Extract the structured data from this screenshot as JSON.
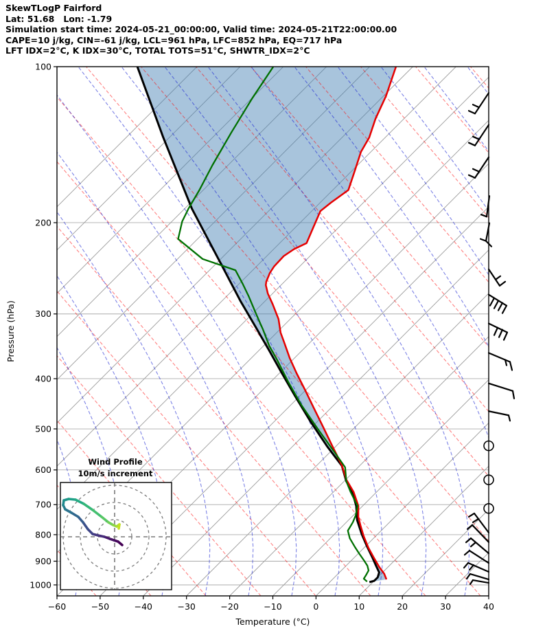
{
  "header": {
    "lines": [
      "SkewTLogP Fairford",
      "Lat: 51.68   Lon: -1.79",
      "Simulation start time: 2024-05-21_00:00:00, Valid time: 2024-05-21T22:00:00.00",
      "CAPE=10 j/kg, CIN=-61 j/kg, LCL=961 hPa, LFC=852 hPa, EQ=717 hPa",
      "LFT IDX=2°C, K IDX=30°C, TOTAL TOTS=51°C, SHWTR_IDX=2°C"
    ]
  },
  "axes": {
    "x_label": "Temperature (°C)",
    "y_label": "Pressure (hPa)",
    "x_ticks": [
      -60,
      -50,
      -40,
      -30,
      -20,
      -10,
      0,
      10,
      20,
      30,
      40
    ],
    "y_ticks": [
      100,
      200,
      300,
      400,
      500,
      600,
      700,
      800,
      900,
      1000
    ]
  },
  "colors": {
    "temperature_line": "#e60000",
    "dewpoint_line": "#007000",
    "parcel_line": "#000000",
    "shading_fill": "rgba(70,130,180,0.47)",
    "isotherm": "#9a9a9a",
    "grid_horizontal": "#ababab",
    "dry_adiabat": "rgba(255,0,0,0.5)",
    "moist_adiabat": "rgba(30,40,210,0.58)",
    "barb": "#000000",
    "hodo_ring": "#7a7a7a"
  },
  "chart_data": {
    "type": "skewt-logp",
    "title": "SkewTLogP Fairford",
    "pressure_range": [
      100,
      1050
    ],
    "temp_range": [
      -60,
      40
    ],
    "skew_deg": 45,
    "grid": true,
    "indices": {
      "CAPE_j_kg": 10,
      "CIN_j_kg": -61,
      "LCL_hPa": 961,
      "LFC_hPa": 852,
      "EQ_hPa": 717,
      "LFT_IDX_C": 2,
      "K_IDX_C": 30,
      "TOTAL_TOTS_C": 51,
      "SHWTR_IDX_C": 2
    },
    "temperature_profile": [
      [
        100,
        -103.9
      ],
      [
        114,
        -99.4
      ],
      [
        126,
        -96.6
      ],
      [
        137,
        -93.7
      ],
      [
        146,
        -92.3
      ],
      [
        160,
        -89.1
      ],
      [
        173,
        -86.4
      ],
      [
        183,
        -87.5
      ],
      [
        190,
        -88.0
      ],
      [
        204,
        -85.9
      ],
      [
        219,
        -83.8
      ],
      [
        225,
        -85.3
      ],
      [
        232,
        -86.1
      ],
      [
        243,
        -85.9
      ],
      [
        250,
        -85.4
      ],
      [
        260,
        -84.2
      ],
      [
        264,
        -83.5
      ],
      [
        274,
        -81.1
      ],
      [
        287,
        -77.6
      ],
      [
        307,
        -72.7
      ],
      [
        326,
        -69.1
      ],
      [
        341,
        -65.9
      ],
      [
        365,
        -61.1
      ],
      [
        391,
        -55.9
      ],
      [
        421,
        -50.1
      ],
      [
        455,
        -44.1
      ],
      [
        494,
        -37.7
      ],
      [
        536,
        -31.4
      ],
      [
        588,
        -24.2
      ],
      [
        627,
        -19.8
      ],
      [
        662,
        -15.3
      ],
      [
        704,
        -11.0
      ],
      [
        739,
        -8.5
      ],
      [
        769,
        -5.9
      ],
      [
        805,
        -2.8
      ],
      [
        848,
        1.0
      ],
      [
        890,
        4.9
      ],
      [
        924,
        8.0
      ],
      [
        952,
        10.7
      ],
      [
        976,
        12.5
      ]
    ],
    "dewpoint_profile": [
      [
        100,
        -132.3
      ],
      [
        115,
        -129.9
      ],
      [
        134,
        -126.8
      ],
      [
        155,
        -123.6
      ],
      [
        173,
        -120.9
      ],
      [
        188,
        -119.1
      ],
      [
        199,
        -117.6
      ],
      [
        215,
        -114.5
      ],
      [
        235,
        -104.2
      ],
      [
        247,
        -94.0
      ],
      [
        262,
        -89.3
      ],
      [
        277,
        -85.0
      ],
      [
        300,
        -79.1
      ],
      [
        322,
        -73.8
      ],
      [
        346,
        -68.6
      ],
      [
        367,
        -63.8
      ],
      [
        407,
        -55.7
      ],
      [
        451,
        -47.3
      ],
      [
        499,
        -38.4
      ],
      [
        553,
        -29.2
      ],
      [
        593,
        -23.0
      ],
      [
        631,
        -19.5
      ],
      [
        662,
        -16.0
      ],
      [
        704,
        -11.2
      ],
      [
        735,
        -9.4
      ],
      [
        757,
        -8.5
      ],
      [
        786,
        -7.7
      ],
      [
        813,
        -5.5
      ],
      [
        843,
        -2.5
      ],
      [
        869,
        0.1
      ],
      [
        896,
        2.8
      ],
      [
        918,
        4.9
      ],
      [
        938,
        6.3
      ],
      [
        958,
        6.8
      ],
      [
        973,
        7.1
      ],
      [
        985,
        8.5
      ]
    ],
    "parcel_profile": [
      [
        100,
        -163.8
      ],
      [
        137,
        -141.4
      ],
      [
        188,
        -118.3
      ],
      [
        251,
        -95.3
      ],
      [
        283,
        -85.8
      ],
      [
        319,
        -75.9
      ],
      [
        353,
        -67.6
      ],
      [
        390,
        -59.5
      ],
      [
        433,
        -50.9
      ],
      [
        484,
        -41.6
      ],
      [
        541,
        -31.9
      ],
      [
        589,
        -24.1
      ],
      [
        631,
        -19.5
      ],
      [
        662,
        -15.6
      ],
      [
        704,
        -11.5
      ],
      [
        750,
        -8.0
      ],
      [
        798,
        -3.7
      ],
      [
        843,
        0.4
      ],
      [
        888,
        4.4
      ],
      [
        918,
        6.9
      ],
      [
        946,
        9.2
      ],
      [
        967,
        10.0
      ],
      [
        982,
        10.0
      ],
      [
        988,
        9.2
      ]
    ],
    "shading": "area between parcel_profile and temperature_profile",
    "wind_barbs": [
      {
        "p": 118,
        "segs": [
          [
            [
              0,
              -16
            ],
            [
              -20,
              14
            ]
          ],
          [
            [
              -20,
              14
            ],
            [
              -29,
              10
            ]
          ],
          [
            [
              -14,
              5
            ],
            [
              -23,
              1
            ]
          ]
        ]
      },
      {
        "p": 136,
        "segs": [
          [
            [
              0,
              -16
            ],
            [
              -20,
              14
            ]
          ],
          [
            [
              -20,
              14
            ],
            [
              -29,
              10
            ]
          ],
          [
            [
              -14,
              5
            ],
            [
              -23,
              1
            ]
          ]
        ]
      },
      {
        "p": 157,
        "segs": [
          [
            [
              0,
              -16
            ],
            [
              -20,
              14
            ]
          ],
          [
            [
              -20,
              14
            ],
            [
              -29,
              10
            ]
          ],
          [
            [
              -14,
              5
            ],
            [
              -23,
              1
            ]
          ]
        ]
      },
      {
        "p": 186,
        "segs": [
          [
            [
              1,
              -15
            ],
            [
              -3,
              15
            ]
          ],
          [
            [
              -3,
              15
            ],
            [
              -11,
              12
            ]
          ]
        ]
      },
      {
        "p": 213,
        "segs": [
          [
            [
              1,
              -20
            ],
            [
              -4,
              6
            ]
          ],
          [
            [
              -4,
              6
            ],
            [
              4,
              14
            ]
          ],
          [
            [
              -4,
              6
            ],
            [
              -12,
              3
            ]
          ]
        ]
      },
      {
        "p": 249,
        "segs": [
          [
            [
              0,
              -4
            ],
            [
              16,
              20
            ]
          ],
          [
            [
              16,
              20
            ],
            [
              24,
              14
            ]
          ],
          [
            [
              10,
              11
            ],
            [
              17,
              6
            ]
          ]
        ]
      },
      {
        "p": 277,
        "segs": [
          [
            [
              0,
              -2
            ],
            [
              26,
              14
            ]
          ],
          [
            [
              26,
              14
            ],
            [
              20,
              25
            ]
          ],
          [
            [
              20,
              10
            ],
            [
              14,
              21
            ]
          ],
          [
            [
              14,
              7
            ],
            [
              8,
              18
            ]
          ],
          [
            [
              8,
              3
            ],
            [
              2,
              14
            ]
          ]
        ]
      },
      {
        "p": 313,
        "segs": [
          [
            [
              0,
              0
            ],
            [
              27,
              13
            ]
          ],
          [
            [
              27,
              13
            ],
            [
              22,
              24
            ]
          ],
          [
            [
              20,
              9
            ],
            [
              15,
              20
            ]
          ],
          [
            [
              13,
              6
            ],
            [
              8,
              17
            ]
          ]
        ]
      },
      {
        "p": 359,
        "segs": [
          [
            [
              0,
              -2
            ],
            [
              31,
              11
            ]
          ],
          [
            [
              31,
              11
            ],
            [
              34,
              23
            ]
          ],
          [
            [
              24,
              8
            ],
            [
              26,
              16
            ]
          ]
        ]
      },
      {
        "p": 411,
        "segs": [
          [
            [
              0,
              -2
            ],
            [
              35,
              9
            ]
          ],
          [
            [
              35,
              9
            ],
            [
              37,
              20
            ]
          ]
        ]
      },
      {
        "p": 465,
        "segs": [
          [
            [
              0,
              -2
            ],
            [
              29,
              4
            ]
          ],
          [
            [
              29,
              4
            ],
            [
              31,
              12
            ]
          ]
        ]
      },
      {
        "p": 539,
        "calm": true
      },
      {
        "p": 627,
        "calm": true
      },
      {
        "p": 712,
        "calm": true
      },
      {
        "p": 788,
        "segs": [
          [
            [
              0,
              2
            ],
            [
              -21,
              -26
            ]
          ],
          [
            [
              -21,
              -26
            ],
            [
              -29,
              -21
            ]
          ],
          [
            [
              -15,
              -18
            ],
            [
              -23,
              -13
            ]
          ]
        ]
      },
      {
        "p": 822,
        "segs": [
          [
            [
              0,
              2
            ],
            [
              -24,
              -23
            ]
          ],
          [
            [
              -24,
              -23
            ],
            [
              -31,
              -17
            ]
          ]
        ]
      },
      {
        "p": 864,
        "segs": [
          [
            [
              0,
              2
            ],
            [
              -26,
              -20
            ]
          ],
          [
            [
              -26,
              -20
            ],
            [
              -33,
              -14
            ]
          ],
          [
            [
              -19,
              -14
            ],
            [
              -26,
              -8
            ]
          ]
        ]
      },
      {
        "p": 902,
        "segs": [
          [
            [
              0,
              2
            ],
            [
              -28,
              -16
            ]
          ],
          [
            [
              -28,
              -16
            ],
            [
              -35,
              -10
            ]
          ]
        ]
      },
      {
        "p": 938,
        "segs": [
          [
            [
              0,
              2
            ],
            [
              -30,
              -11
            ]
          ],
          [
            [
              -30,
              -11
            ],
            [
              -36,
              -4
            ]
          ],
          [
            [
              -22,
              -8
            ],
            [
              -28,
              -1
            ]
          ]
        ]
      },
      {
        "p": 973,
        "segs": [
          [
            [
              0,
              1
            ],
            [
              -27,
              -7
            ]
          ],
          [
            [
              -32,
              0
            ],
            [
              -27,
              -7
            ]
          ]
        ]
      },
      {
        "p": 991,
        "segs": [
          [
            [
              0,
              0
            ],
            [
              -23,
              -4
            ]
          ],
          [
            [
              -27,
              2
            ],
            [
              -23,
              -4
            ]
          ]
        ]
      }
    ],
    "hodograph": {
      "title": "Wind Profile",
      "subtitle": "10m/s increment",
      "ring_increment_ms": 10,
      "rings_ms": [
        10,
        20,
        30
      ],
      "trace_uv_ms": [
        [
          4.4,
          -4.8
        ],
        [
          2.0,
          -2.8
        ],
        [
          -0.4,
          -2.0
        ],
        [
          -2.8,
          -1.2
        ],
        [
          -6.0,
          0.0
        ],
        [
          -9.6,
          0.8
        ],
        [
          -12.8,
          1.6
        ],
        [
          -15.6,
          4.4
        ],
        [
          -18.4,
          8.4
        ],
        [
          -21.2,
          11.6
        ],
        [
          -25.2,
          14.0
        ],
        [
          -28.8,
          16.0
        ],
        [
          -30.0,
          18.4
        ],
        [
          -29.6,
          21.2
        ],
        [
          -26.8,
          22.0
        ],
        [
          -22.8,
          21.6
        ],
        [
          -18.0,
          19.2
        ],
        [
          -12.8,
          15.6
        ],
        [
          -7.6,
          11.6
        ],
        [
          -3.6,
          8.4
        ],
        [
          -0.8,
          6.8
        ],
        [
          1.2,
          6.0
        ],
        [
          2.8,
          7.2
        ],
        [
          2.4,
          4.8
        ]
      ],
      "trace_colors": [
        "#440154",
        "#46085c",
        "#471264",
        "#47186a",
        "#472d7b",
        "#45377f",
        "#414487",
        "#3c4f8a",
        "#365c8d",
        "#31688e",
        "#2c728e",
        "#287d8e",
        "#23888e",
        "#1f938b",
        "#1fa088",
        "#24aa83",
        "#35b779",
        "#44bf70",
        "#58c765",
        "#70cf57",
        "#8ed645",
        "#a8db34",
        "#c5e021",
        "#fde725"
      ]
    }
  }
}
